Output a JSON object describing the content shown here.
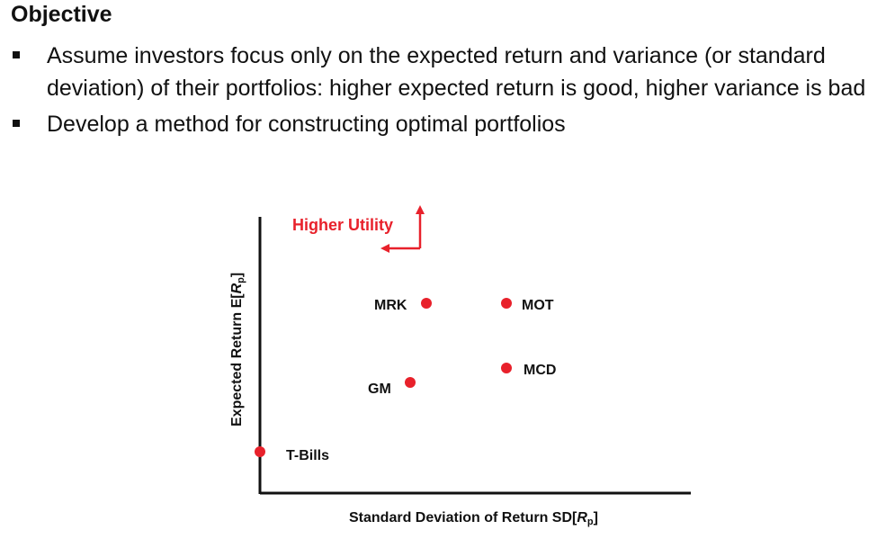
{
  "slide": {
    "title": "Objective",
    "bullets": [
      "Assume investors focus only on the expected return and variance (or standard deviation) of their portfolios: higher expected return is good, higher variance is bad",
      "Develop a method for constructing optimal portfolios"
    ]
  },
  "diagram": {
    "utility_label": "Higher Utility",
    "y_axis_label": {
      "main": "Expected Return E[",
      "var": "R",
      "sub": "p",
      "close": "]"
    },
    "x_axis_label": {
      "main": "Standard Deviation of Return SD[",
      "var": "R",
      "sub": "p",
      "close": "]"
    },
    "points": [
      {
        "label": "MRK"
      },
      {
        "label": "MOT"
      },
      {
        "label": "MCD"
      },
      {
        "label": "GM"
      },
      {
        "label": "T-Bills"
      }
    ],
    "colors": {
      "accent": "#e8212b",
      "axis": "#111111"
    }
  }
}
